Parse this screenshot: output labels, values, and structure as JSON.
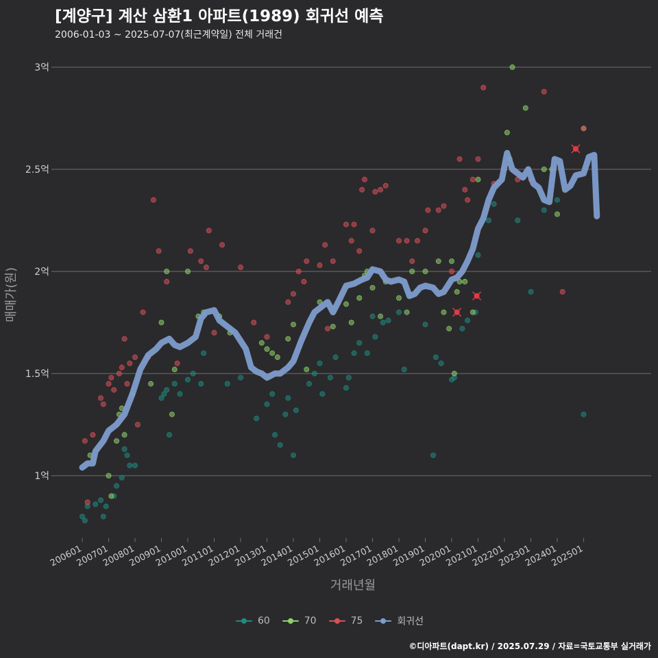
{
  "title": "[계양구] 계산 삼환1 아파트(1989) 회귀선 예측",
  "subtitle": "2006-01-03 ~ 2025-07-07(최근계약일) 전체 거래건",
  "caption": "©디아파트(dapt.kr) / 2025.07.29 / 자료=국토교통부 실거래가",
  "chart_data": {
    "type": "scatter",
    "xlabel": "거래년월",
    "ylabel": "매매가(원)",
    "xlim": [
      2006.0,
      2025.6
    ],
    "ylim": [
      0.78,
      3.1
    ],
    "x_ticks": [
      {
        "label": "200601",
        "value": 2006.0
      },
      {
        "label": "200701",
        "value": 2007.0
      },
      {
        "label": "200801",
        "value": 2008.0
      },
      {
        "label": "200901",
        "value": 2009.0
      },
      {
        "label": "201001",
        "value": 2010.0
      },
      {
        "label": "201101",
        "value": 2011.0
      },
      {
        "label": "201201",
        "value": 2012.0
      },
      {
        "label": "201301",
        "value": 2013.0
      },
      {
        "label": "201401",
        "value": 2014.0
      },
      {
        "label": "201501",
        "value": 2015.0
      },
      {
        "label": "201601",
        "value": 2016.0
      },
      {
        "label": "201701",
        "value": 2017.0
      },
      {
        "label": "201801",
        "value": 2018.0
      },
      {
        "label": "201901",
        "value": 2019.0
      },
      {
        "label": "202001",
        "value": 2020.0
      },
      {
        "label": "202101",
        "value": 2021.0
      },
      {
        "label": "202201",
        "value": 2022.0
      },
      {
        "label": "202301",
        "value": 2023.0
      },
      {
        "label": "202401",
        "value": 2024.0
      },
      {
        "label": "202501",
        "value": 2025.0
      }
    ],
    "y_ticks": [
      {
        "label": "1억",
        "value": 1.0
      },
      {
        "label": "1.5억",
        "value": 1.5
      },
      {
        "label": "2억",
        "value": 2.0
      },
      {
        "label": "2.5억",
        "value": 2.5
      },
      {
        "label": "3억",
        "value": 3.0
      }
    ],
    "legend": [
      {
        "label": "60",
        "color": "#1f8a80"
      },
      {
        "label": "70",
        "color": "#8fd16a"
      },
      {
        "label": "75",
        "color": "#d9505a"
      },
      {
        "label": "회귀선",
        "color": "#7e9ccc"
      }
    ],
    "series": [
      {
        "name": "60",
        "color": "#1f8a80",
        "points": [
          [
            2006.0,
            0.8
          ],
          [
            2006.1,
            0.78
          ],
          [
            2006.2,
            0.85
          ],
          [
            2006.5,
            0.86
          ],
          [
            2006.7,
            0.88
          ],
          [
            2006.8,
            0.8
          ],
          [
            2006.9,
            0.85
          ],
          [
            2007.2,
            0.9
          ],
          [
            2007.3,
            0.95
          ],
          [
            2007.5,
            0.99
          ],
          [
            2007.6,
            1.13
          ],
          [
            2007.7,
            1.1
          ],
          [
            2007.8,
            1.05
          ],
          [
            2008.0,
            1.05
          ],
          [
            2009.0,
            1.38
          ],
          [
            2009.1,
            1.4
          ],
          [
            2009.2,
            1.42
          ],
          [
            2009.3,
            1.2
          ],
          [
            2009.5,
            1.45
          ],
          [
            2009.7,
            1.4
          ],
          [
            2010.0,
            1.47
          ],
          [
            2010.2,
            1.5
          ],
          [
            2010.5,
            1.45
          ],
          [
            2010.6,
            1.6
          ],
          [
            2011.5,
            1.45
          ],
          [
            2012.0,
            1.48
          ],
          [
            2012.6,
            1.28
          ],
          [
            2013.0,
            1.35
          ],
          [
            2013.2,
            1.4
          ],
          [
            2013.3,
            1.2
          ],
          [
            2013.5,
            1.15
          ],
          [
            2013.7,
            1.3
          ],
          [
            2013.8,
            1.38
          ],
          [
            2014.0,
            1.1
          ],
          [
            2014.1,
            1.32
          ],
          [
            2014.6,
            1.45
          ],
          [
            2014.8,
            1.5
          ],
          [
            2015.0,
            1.55
          ],
          [
            2015.1,
            1.4
          ],
          [
            2015.4,
            1.48
          ],
          [
            2015.6,
            1.58
          ],
          [
            2016.0,
            1.43
          ],
          [
            2016.1,
            1.48
          ],
          [
            2016.3,
            1.6
          ],
          [
            2016.5,
            1.65
          ],
          [
            2016.8,
            1.6
          ],
          [
            2017.0,
            1.78
          ],
          [
            2017.1,
            1.68
          ],
          [
            2017.4,
            1.75
          ],
          [
            2017.6,
            1.76
          ],
          [
            2018.0,
            1.8
          ],
          [
            2018.2,
            1.52
          ],
          [
            2019.0,
            1.74
          ],
          [
            2019.3,
            1.1
          ],
          [
            2019.4,
            1.58
          ],
          [
            2019.6,
            1.55
          ],
          [
            2020.0,
            1.47
          ],
          [
            2020.1,
            1.48
          ],
          [
            2020.4,
            1.72
          ],
          [
            2020.6,
            1.76
          ],
          [
            2020.9,
            1.8
          ],
          [
            2021.0,
            2.08
          ],
          [
            2021.4,
            2.25
          ],
          [
            2021.6,
            2.33
          ],
          [
            2022.5,
            2.25
          ],
          [
            2023.0,
            1.9
          ],
          [
            2023.5,
            2.3
          ],
          [
            2024.0,
            2.35
          ],
          [
            2025.0,
            1.3
          ]
        ]
      },
      {
        "name": "70",
        "color": "#8fd16a",
        "points": [
          [
            2006.3,
            1.1
          ],
          [
            2007.0,
            1.0
          ],
          [
            2007.1,
            0.9
          ],
          [
            2007.3,
            1.17
          ],
          [
            2007.4,
            1.3
          ],
          [
            2007.5,
            1.33
          ],
          [
            2007.6,
            1.2
          ],
          [
            2007.9,
            1.4
          ],
          [
            2008.6,
            1.45
          ],
          [
            2009.0,
            1.75
          ],
          [
            2009.2,
            2.0
          ],
          [
            2009.4,
            1.3
          ],
          [
            2009.5,
            1.52
          ],
          [
            2010.0,
            2.0
          ],
          [
            2010.4,
            1.78
          ],
          [
            2010.6,
            1.8
          ],
          [
            2011.2,
            1.78
          ],
          [
            2011.6,
            1.7
          ],
          [
            2012.8,
            1.65
          ],
          [
            2013.0,
            1.62
          ],
          [
            2013.2,
            1.6
          ],
          [
            2013.4,
            1.58
          ],
          [
            2013.8,
            1.67
          ],
          [
            2014.0,
            1.74
          ],
          [
            2014.5,
            1.52
          ],
          [
            2015.0,
            1.85
          ],
          [
            2015.5,
            1.73
          ],
          [
            2016.0,
            1.84
          ],
          [
            2016.2,
            1.75
          ],
          [
            2016.5,
            1.87
          ],
          [
            2016.7,
            1.98
          ],
          [
            2016.8,
            2.0
          ],
          [
            2017.0,
            1.92
          ],
          [
            2017.3,
            1.78
          ],
          [
            2017.5,
            1.95
          ],
          [
            2018.0,
            1.87
          ],
          [
            2018.3,
            1.8
          ],
          [
            2018.5,
            2.0
          ],
          [
            2019.0,
            2.0
          ],
          [
            2019.5,
            2.05
          ],
          [
            2019.7,
            1.8
          ],
          [
            2019.9,
            1.72
          ],
          [
            2020.0,
            2.05
          ],
          [
            2020.1,
            1.5
          ],
          [
            2020.2,
            1.9
          ],
          [
            2020.3,
            1.95
          ],
          [
            2020.5,
            1.95
          ],
          [
            2020.8,
            1.8
          ],
          [
            2021.0,
            2.45
          ],
          [
            2022.1,
            2.68
          ],
          [
            2022.2,
            2.55
          ],
          [
            2022.3,
            3.0
          ],
          [
            2022.8,
            2.8
          ],
          [
            2023.5,
            2.5
          ],
          [
            2023.8,
            2.5
          ],
          [
            2024.0,
            2.28
          ],
          [
            2025.0,
            2.7
          ]
        ]
      },
      {
        "name": "75",
        "color": "#d9505a",
        "points": [
          [
            2006.1,
            1.17
          ],
          [
            2006.2,
            0.87
          ],
          [
            2006.4,
            1.2
          ],
          [
            2006.7,
            1.38
          ],
          [
            2006.8,
            1.35
          ],
          [
            2007.0,
            1.45
          ],
          [
            2007.1,
            1.48
          ],
          [
            2007.2,
            1.42
          ],
          [
            2007.4,
            1.5
          ],
          [
            2007.5,
            1.53
          ],
          [
            2007.6,
            1.67
          ],
          [
            2007.7,
            1.45
          ],
          [
            2007.8,
            1.55
          ],
          [
            2008.0,
            1.58
          ],
          [
            2008.1,
            1.25
          ],
          [
            2008.3,
            1.8
          ],
          [
            2008.5,
            1.58
          ],
          [
            2008.7,
            2.35
          ],
          [
            2008.9,
            2.1
          ],
          [
            2009.2,
            1.95
          ],
          [
            2009.6,
            1.55
          ],
          [
            2010.1,
            2.1
          ],
          [
            2010.5,
            2.05
          ],
          [
            2010.7,
            2.02
          ],
          [
            2010.8,
            2.2
          ],
          [
            2011.0,
            1.7
          ],
          [
            2011.3,
            2.13
          ],
          [
            2012.0,
            2.02
          ],
          [
            2012.5,
            1.75
          ],
          [
            2013.0,
            1.68
          ],
          [
            2013.5,
            1.5
          ],
          [
            2013.8,
            1.85
          ],
          [
            2014.0,
            1.89
          ],
          [
            2014.2,
            2.0
          ],
          [
            2014.4,
            1.95
          ],
          [
            2014.5,
            2.05
          ],
          [
            2015.0,
            2.03
          ],
          [
            2015.2,
            2.13
          ],
          [
            2015.3,
            1.72
          ],
          [
            2015.5,
            2.05
          ],
          [
            2016.0,
            2.23
          ],
          [
            2016.2,
            2.15
          ],
          [
            2016.3,
            2.23
          ],
          [
            2016.5,
            2.1
          ],
          [
            2016.6,
            2.4
          ],
          [
            2016.7,
            2.45
          ],
          [
            2017.0,
            2.2
          ],
          [
            2017.1,
            2.39
          ],
          [
            2017.3,
            2.4
          ],
          [
            2017.5,
            2.42
          ],
          [
            2018.0,
            2.15
          ],
          [
            2018.3,
            2.15
          ],
          [
            2018.5,
            2.05
          ],
          [
            2018.7,
            2.15
          ],
          [
            2019.0,
            2.2
          ],
          [
            2019.1,
            2.3
          ],
          [
            2019.5,
            2.3
          ],
          [
            2019.7,
            2.32
          ],
          [
            2020.0,
            2.0
          ],
          [
            2020.3,
            2.55
          ],
          [
            2020.5,
            2.4
          ],
          [
            2020.6,
            2.35
          ],
          [
            2020.8,
            2.45
          ],
          [
            2021.0,
            2.55
          ],
          [
            2021.2,
            2.9
          ],
          [
            2021.6,
            2.43
          ],
          [
            2022.0,
            2.5
          ],
          [
            2022.5,
            2.45
          ],
          [
            2023.0,
            2.45
          ],
          [
            2023.5,
            2.88
          ],
          [
            2024.2,
            1.9
          ],
          [
            2024.7,
            2.6
          ],
          [
            2025.0,
            2.7
          ]
        ]
      }
    ],
    "highlighted": [
      {
        "x": 2020.2,
        "y": 1.8
      },
      {
        "x": 2020.95,
        "y": 1.88
      },
      {
        "x": 2024.7,
        "y": 2.6
      }
    ],
    "regression": {
      "name": "회귀선",
      "color": "#7e9ccc",
      "points": [
        [
          2006.0,
          1.04
        ],
        [
          2006.2,
          1.06
        ],
        [
          2006.4,
          1.06
        ],
        [
          2006.5,
          1.12
        ],
        [
          2006.8,
          1.17
        ],
        [
          2007.0,
          1.22
        ],
        [
          2007.3,
          1.25
        ],
        [
          2007.6,
          1.3
        ],
        [
          2007.9,
          1.4
        ],
        [
          2008.2,
          1.52
        ],
        [
          2008.5,
          1.59
        ],
        [
          2008.8,
          1.62
        ],
        [
          2009.0,
          1.65
        ],
        [
          2009.3,
          1.67
        ],
        [
          2009.5,
          1.64
        ],
        [
          2009.7,
          1.63
        ],
        [
          2010.0,
          1.65
        ],
        [
          2010.3,
          1.68
        ],
        [
          2010.5,
          1.77
        ],
        [
          2010.7,
          1.8
        ],
        [
          2011.0,
          1.81
        ],
        [
          2011.2,
          1.76
        ],
        [
          2011.4,
          1.74
        ],
        [
          2011.6,
          1.72
        ],
        [
          2011.8,
          1.7
        ],
        [
          2012.0,
          1.66
        ],
        [
          2012.2,
          1.62
        ],
        [
          2012.4,
          1.53
        ],
        [
          2012.6,
          1.51
        ],
        [
          2012.8,
          1.5
        ],
        [
          2013.0,
          1.48
        ],
        [
          2013.3,
          1.5
        ],
        [
          2013.5,
          1.5
        ],
        [
          2013.8,
          1.53
        ],
        [
          2014.0,
          1.56
        ],
        [
          2014.3,
          1.66
        ],
        [
          2014.6,
          1.75
        ],
        [
          2014.8,
          1.8
        ],
        [
          2015.0,
          1.82
        ],
        [
          2015.3,
          1.85
        ],
        [
          2015.5,
          1.8
        ],
        [
          2015.7,
          1.85
        ],
        [
          2016.0,
          1.93
        ],
        [
          2016.3,
          1.94
        ],
        [
          2016.6,
          1.96
        ],
        [
          2016.8,
          1.97
        ],
        [
          2017.0,
          2.01
        ],
        [
          2017.3,
          2.0
        ],
        [
          2017.5,
          1.96
        ],
        [
          2017.7,
          1.95
        ],
        [
          2018.0,
          1.96
        ],
        [
          2018.2,
          1.95
        ],
        [
          2018.4,
          1.88
        ],
        [
          2018.6,
          1.89
        ],
        [
          2018.8,
          1.92
        ],
        [
          2019.0,
          1.93
        ],
        [
          2019.3,
          1.92
        ],
        [
          2019.5,
          1.89
        ],
        [
          2019.7,
          1.9
        ],
        [
          2020.0,
          1.96
        ],
        [
          2020.2,
          1.97
        ],
        [
          2020.4,
          2.0
        ],
        [
          2020.6,
          2.05
        ],
        [
          2020.8,
          2.11
        ],
        [
          2021.0,
          2.21
        ],
        [
          2021.2,
          2.26
        ],
        [
          2021.4,
          2.35
        ],
        [
          2021.6,
          2.41
        ],
        [
          2021.9,
          2.45
        ],
        [
          2022.1,
          2.58
        ],
        [
          2022.3,
          2.5
        ],
        [
          2022.5,
          2.48
        ],
        [
          2022.7,
          2.46
        ],
        [
          2022.9,
          2.5
        ],
        [
          2023.1,
          2.43
        ],
        [
          2023.3,
          2.41
        ],
        [
          2023.5,
          2.35
        ],
        [
          2023.7,
          2.34
        ],
        [
          2023.9,
          2.55
        ],
        [
          2024.1,
          2.54
        ],
        [
          2024.3,
          2.4
        ],
        [
          2024.5,
          2.42
        ],
        [
          2024.7,
          2.47
        ],
        [
          2025.0,
          2.48
        ],
        [
          2025.2,
          2.56
        ],
        [
          2025.4,
          2.57
        ],
        [
          2025.5,
          2.27
        ]
      ]
    }
  }
}
